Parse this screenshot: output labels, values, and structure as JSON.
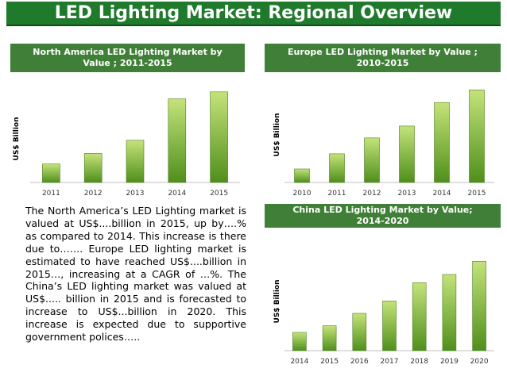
{
  "header": {
    "title": "LED Lighting Market: Regional Overview"
  },
  "panels": {
    "north_america": {
      "title_line1": "North America LED Lighting Market by",
      "title_line2": "Value ; 2011-2015"
    },
    "europe": {
      "title_line1": "Europe LED Lighting Market by Value ;",
      "title_line2": "2010-2015"
    },
    "china": {
      "title_line1": "China LED Lighting Market by Value;",
      "title_line2": "2014-2020"
    }
  },
  "description": "The North America’s LED Lighting market is valued at US$....billion in 2015, up by….% as compared to 2014. This increase is there due to……. Europe LED lighting market is estimated to have reached US$....billion in 2015…, increasing at a CAGR of …%. The China’s LED lighting market was valued at US$..... billion in 2015 and is forecasted to increase to US$...billion in 2020. This increase is expected due to supportive government polices…..",
  "colors": {
    "title_bg": "#1f7a2c",
    "panel_header_bg": "#3f7f37",
    "bar_light": "#c4e37a",
    "bar_dark": "#4f8f1c"
  },
  "chart_data": [
    {
      "type": "bar",
      "ylabel": "US$ Billion",
      "categories": [
        "2011",
        "2012",
        "2013",
        "2014",
        "2015"
      ],
      "values": [
        21,
        33,
        48,
        95,
        103
      ],
      "ylim": [
        0,
        110
      ]
    },
    {
      "type": "bar",
      "ylabel": "US$ Billion",
      "categories": [
        "2010",
        "2011",
        "2012",
        "2013",
        "2014",
        "2015"
      ],
      "values": [
        16,
        34,
        53,
        67,
        95,
        110
      ],
      "ylim": [
        0,
        115
      ]
    },
    {
      "type": "bar",
      "ylabel": "US$ Billion",
      "categories": [
        "2014",
        "2015",
        "2016",
        "2017",
        "2018",
        "2019",
        "2020"
      ],
      "values": [
        22,
        30,
        45,
        60,
        82,
        92,
        108
      ],
      "ylim": [
        0,
        115
      ]
    }
  ]
}
